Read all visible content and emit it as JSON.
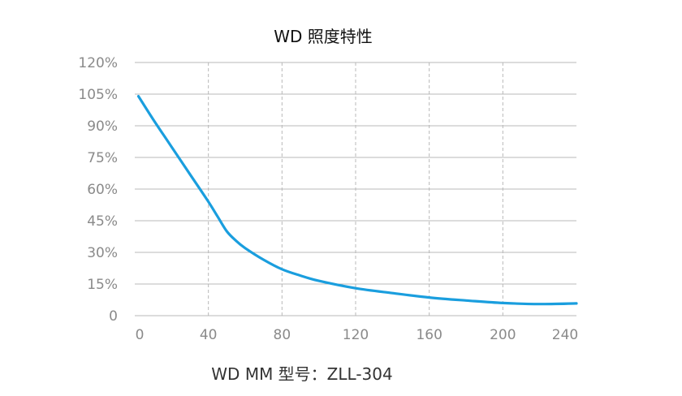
{
  "chart_data": {
    "type": "line",
    "title": "WD 照度特性",
    "xlabel": "",
    "ylabel": "",
    "caption": "WD MM 型号：ZLL-304",
    "xlim": [
      0,
      240
    ],
    "ylim": [
      0,
      120
    ],
    "x_ticks": [
      0,
      40,
      80,
      120,
      160,
      200,
      240
    ],
    "x_tick_labels": [
      "0",
      "40",
      "80",
      "120",
      "160",
      "200",
      "240"
    ],
    "y_ticks": [
      0,
      15,
      30,
      45,
      60,
      75,
      90,
      105,
      120
    ],
    "y_tick_labels": [
      "0",
      "15%",
      "30%",
      "45%",
      "60%",
      "75%",
      "90%",
      "105%",
      "120%"
    ],
    "grid": {
      "horizontal": true,
      "vertical": "dashed"
    },
    "line_color": "#1a9ede",
    "series": [
      {
        "x": [
          2,
          10,
          20,
          30,
          40,
          45,
          50,
          55,
          60,
          70,
          80,
          90,
          100,
          120,
          140,
          160,
          180,
          200,
          220,
          240
        ],
        "values": [
          104,
          93,
          80,
          67,
          54,
          47,
          40,
          35.5,
          32,
          26.5,
          22,
          19,
          16.5,
          13,
          10.7,
          8.6,
          7.2,
          6,
          5.5,
          5.8
        ]
      }
    ]
  }
}
